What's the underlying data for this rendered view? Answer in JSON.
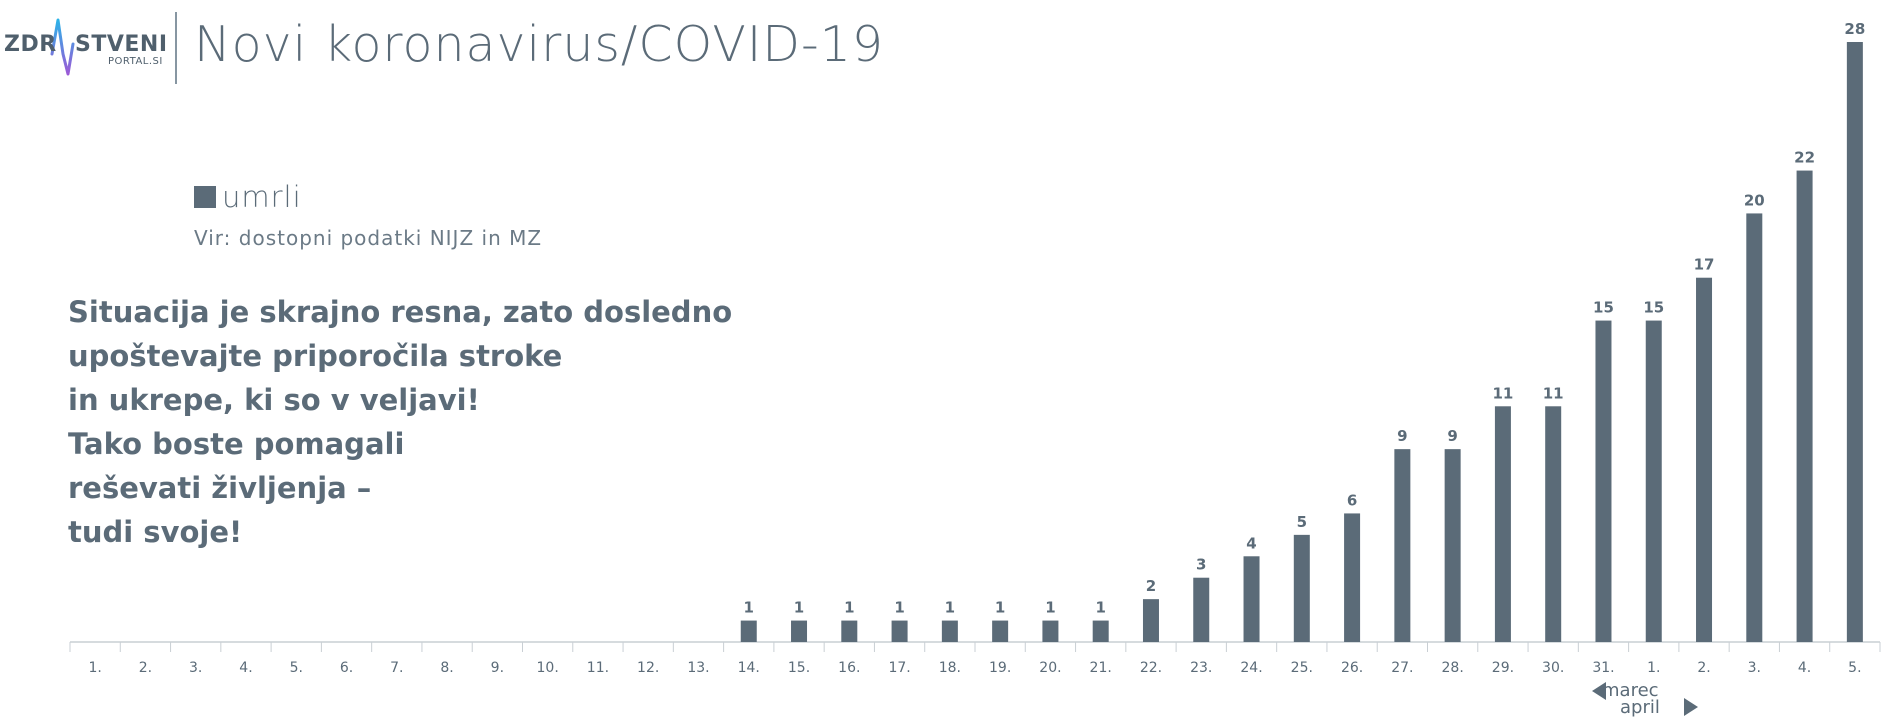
{
  "logo": {
    "text_left": "ZDR",
    "text_right": "STVENI",
    "subtext": "PORTAL.SI"
  },
  "header": {
    "title": "Novi koronavirus/COVID-19"
  },
  "legend": {
    "label": "umrli"
  },
  "source": "Vir: dostopni podatki NIJZ in MZ",
  "message": [
    "Situacija je skrajno resna, zato dosledno",
    "upoštevajte priporočila stroke",
    "in ukrepe, ki so v veljavi!",
    "Tako boste pomagali",
    "reševati življenja –",
    "tudi svoje!"
  ],
  "months": {
    "march": "marec",
    "april": "april"
  },
  "colors": {
    "bar": "#5b6b78",
    "axis": "#c9cfd4",
    "text": "#5b6b78"
  },
  "chart_data": {
    "type": "bar",
    "categories": [
      "1.",
      "2.",
      "3.",
      "4.",
      "5.",
      "6.",
      "7.",
      "8.",
      "9.",
      "10.",
      "11.",
      "12.",
      "13.",
      "14.",
      "15.",
      "16.",
      "17.",
      "18.",
      "19.",
      "20.",
      "21.",
      "22.",
      "23.",
      "24.",
      "25.",
      "26.",
      "27.",
      "28.",
      "29.",
      "30.",
      "31.",
      "1.",
      "2.",
      "3.",
      "4.",
      "5."
    ],
    "series": [
      {
        "name": "umrli",
        "values": [
          0,
          0,
          0,
          0,
          0,
          0,
          0,
          0,
          0,
          0,
          0,
          0,
          0,
          1,
          1,
          1,
          1,
          1,
          1,
          1,
          1,
          2,
          3,
          4,
          5,
          6,
          9,
          9,
          11,
          11,
          15,
          15,
          17,
          20,
          22,
          28
        ]
      }
    ],
    "data_labels": true,
    "ylim": [
      0,
      28
    ],
    "grid": false,
    "legend_position": "top-left"
  }
}
